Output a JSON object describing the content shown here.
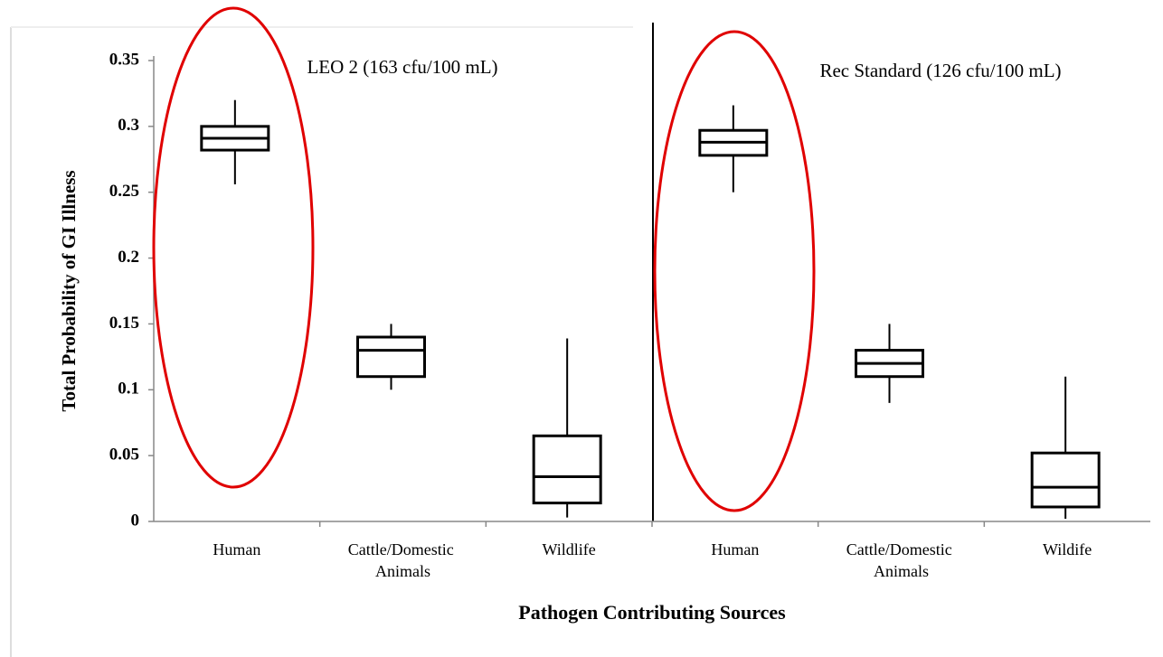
{
  "chart_data": {
    "type": "box",
    "y_label": "Total Probability of GI Illness",
    "x_label": "Pathogen Contributing Sources",
    "annotations": [
      "LEO 2 (163 cfu/100 mL)",
      "Rec Standard (126 cfu/100 mL)"
    ],
    "categories": [
      "Human",
      "Cattle/Domestic Animals",
      "Wildlife",
      "Human",
      "Cattle/Domestic Animals",
      "Wildife"
    ],
    "boxes": [
      {
        "min": 0.256,
        "q1": 0.282,
        "median": 0.291,
        "q3": 0.3,
        "max": 0.32
      },
      {
        "min": 0.1,
        "q1": 0.11,
        "median": 0.13,
        "q3": 0.14,
        "max": 0.15
      },
      {
        "min": 0.003,
        "q1": 0.014,
        "median": 0.034,
        "q3": 0.065,
        "max": 0.139
      },
      {
        "min": 0.25,
        "q1": 0.278,
        "median": 0.288,
        "q3": 0.297,
        "max": 0.316
      },
      {
        "min": 0.09,
        "q1": 0.11,
        "median": 0.12,
        "q3": 0.13,
        "max": 0.15
      },
      {
        "min": 0.002,
        "q1": 0.011,
        "median": 0.026,
        "q3": 0.052,
        "max": 0.11
      }
    ],
    "color": "#000000",
    "ylim": [
      0,
      0.35
    ],
    "yticks": [
      0,
      0.05,
      0.1,
      0.15,
      0.2,
      0.25,
      0.3,
      0.35
    ],
    "grid": false
  }
}
